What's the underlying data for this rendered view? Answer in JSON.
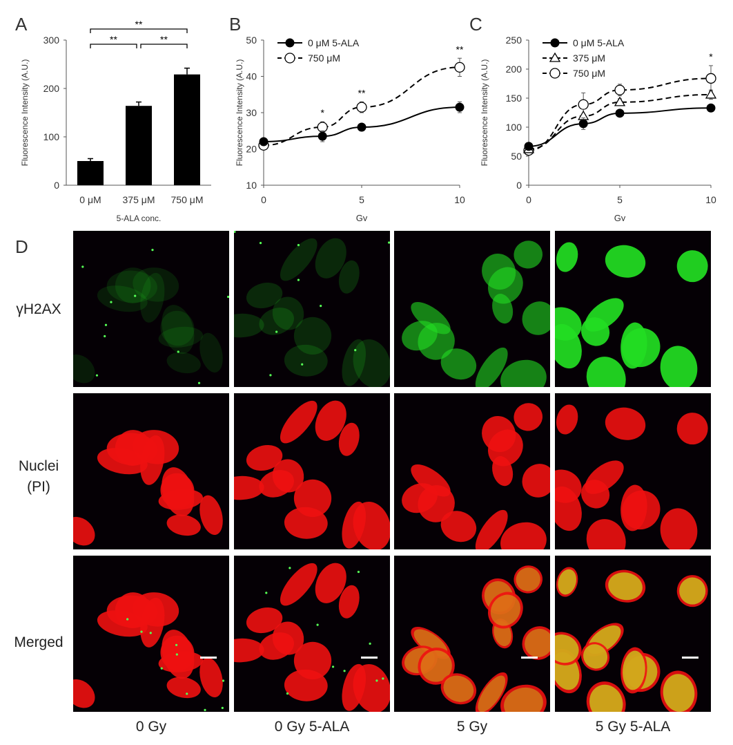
{
  "panels": {
    "a": "A",
    "b": "B",
    "c": "C",
    "d": "D"
  },
  "colors": {
    "bar": "#000000",
    "green": "#22dd22",
    "red": "#ee1111",
    "yellow": "#c8e020",
    "background": "#050005"
  },
  "chart_data": [
    {
      "type": "bar",
      "panel": "A",
      "categories": [
        "0 μM",
        "375 μM",
        "750 μM"
      ],
      "values": [
        50,
        164,
        229
      ],
      "errors": [
        5,
        8,
        13
      ],
      "xlabel": "5-ALA conc.",
      "ylabel": "Fluorescence Intensity (A.U.)",
      "ylim": [
        0,
        300
      ],
      "yticks": [
        "0",
        "100",
        "200",
        "300"
      ],
      "significance": [
        {
          "from": 0,
          "to": 2,
          "label": "**"
        },
        {
          "from": 0,
          "to": 1,
          "label": "**"
        },
        {
          "from": 1,
          "to": 2,
          "label": "**"
        }
      ]
    },
    {
      "type": "line",
      "panel": "B",
      "x": [
        0,
        3,
        5,
        10
      ],
      "series": [
        {
          "name": "0 μM 5-ALA",
          "values": [
            22,
            23.5,
            26,
            31.5
          ],
          "errors": [
            0.5,
            1.5,
            1,
            1.5
          ],
          "style": "solid",
          "marker": "filled-circle"
        },
        {
          "name": "750 μM",
          "values": [
            21,
            26,
            31.5,
            42.5
          ],
          "errors": [
            0.5,
            1.5,
            1.5,
            2.5
          ],
          "style": "dashed",
          "marker": "open-circle"
        }
      ],
      "annotations": [
        {
          "x": 3,
          "label": "*"
        },
        {
          "x": 5,
          "label": "**"
        },
        {
          "x": 10,
          "label": "**"
        }
      ],
      "xlabel": "Gy",
      "ylabel": "Fluorescence Intensity (A.U.)",
      "ylim": [
        10,
        50
      ],
      "yticks": [
        "10",
        "20",
        "30",
        "40",
        "50"
      ],
      "xticks": [
        "0",
        "5",
        "10"
      ],
      "legend": "top-left"
    },
    {
      "type": "line",
      "panel": "C",
      "x": [
        0,
        3,
        5,
        10
      ],
      "series": [
        {
          "name": "0 μM 5-ALA",
          "values": [
            67,
            106,
            124,
            133
          ],
          "errors": [
            4,
            10,
            5,
            5
          ],
          "style": "solid",
          "marker": "filled-circle"
        },
        {
          "name": "375 μM",
          "values": [
            62,
            119,
            143,
            156
          ],
          "errors": [
            4,
            12,
            6,
            8
          ],
          "style": "dashed",
          "marker": "open-triangle"
        },
        {
          "name": "750 μM",
          "values": [
            60,
            139,
            164,
            184
          ],
          "errors": [
            4,
            20,
            10,
            22
          ],
          "style": "dashed",
          "marker": "open-circle"
        }
      ],
      "annotations": [
        {
          "x": 10,
          "label": "*"
        }
      ],
      "xlabel": "Gy",
      "ylabel": "Fluorescence Intensity (A.U.)",
      "ylim": [
        0,
        250
      ],
      "yticks": [
        "0",
        "50",
        "100",
        "150",
        "200",
        "250"
      ],
      "xticks": [
        "0",
        "5",
        "10"
      ],
      "legend": "top-left"
    }
  ],
  "micrographs": {
    "rows": [
      "γH2AX",
      "Nuclei\n(PI)",
      "Merged"
    ],
    "columns": [
      "0 Gy",
      "0 Gy 5-ALA",
      "5 Gy",
      "5 Gy 5-ALA"
    ],
    "green_signal": [
      0.05,
      0.12,
      0.6,
      1.0
    ]
  }
}
